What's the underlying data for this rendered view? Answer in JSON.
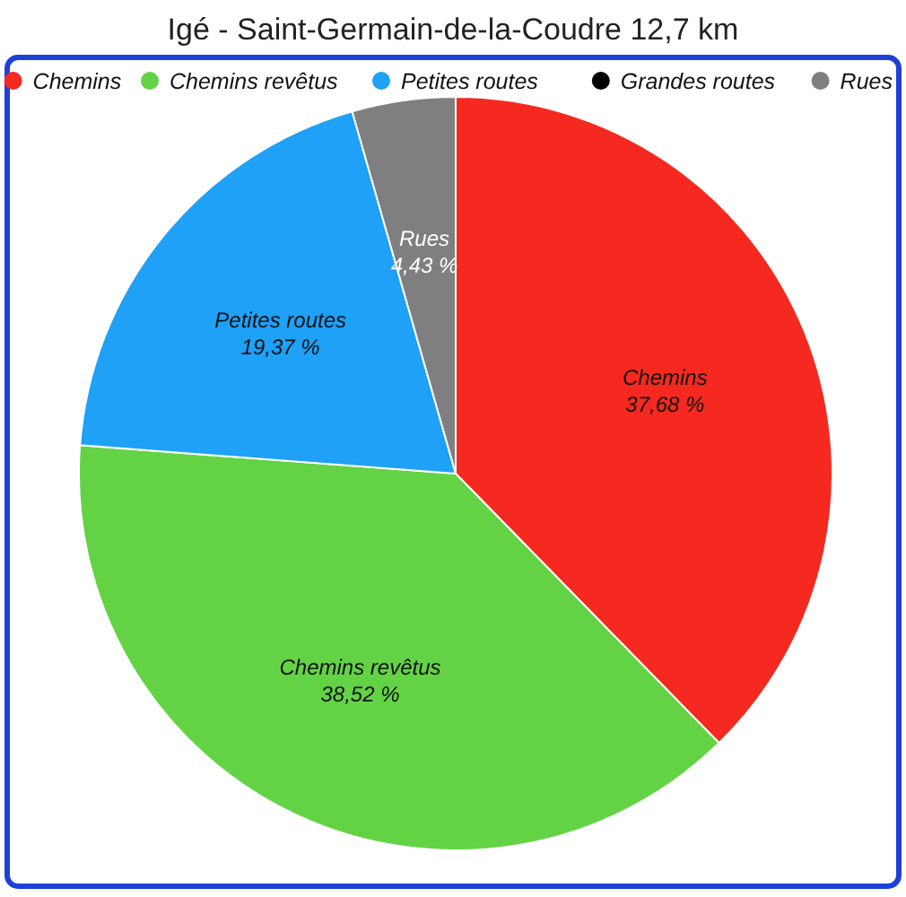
{
  "chart_data": {
    "type": "pie",
    "title": "Igé - Saint-Germain-de-la-Coudre 12,7 km",
    "categories": [
      "Chemins",
      "Chemins revêtus",
      "Petites routes",
      "Grandes routes",
      "Rues"
    ],
    "values": [
      37.68,
      38.52,
      19.37,
      0,
      4.43
    ],
    "colors": [
      "#f5291f",
      "#63d345",
      "#1ea1f7",
      "#000000",
      "#7f7f7f"
    ],
    "value_labels": [
      "37,68 %",
      "38,52 %",
      "19,37 %",
      null,
      "4,43 %"
    ],
    "legend": "top"
  }
}
